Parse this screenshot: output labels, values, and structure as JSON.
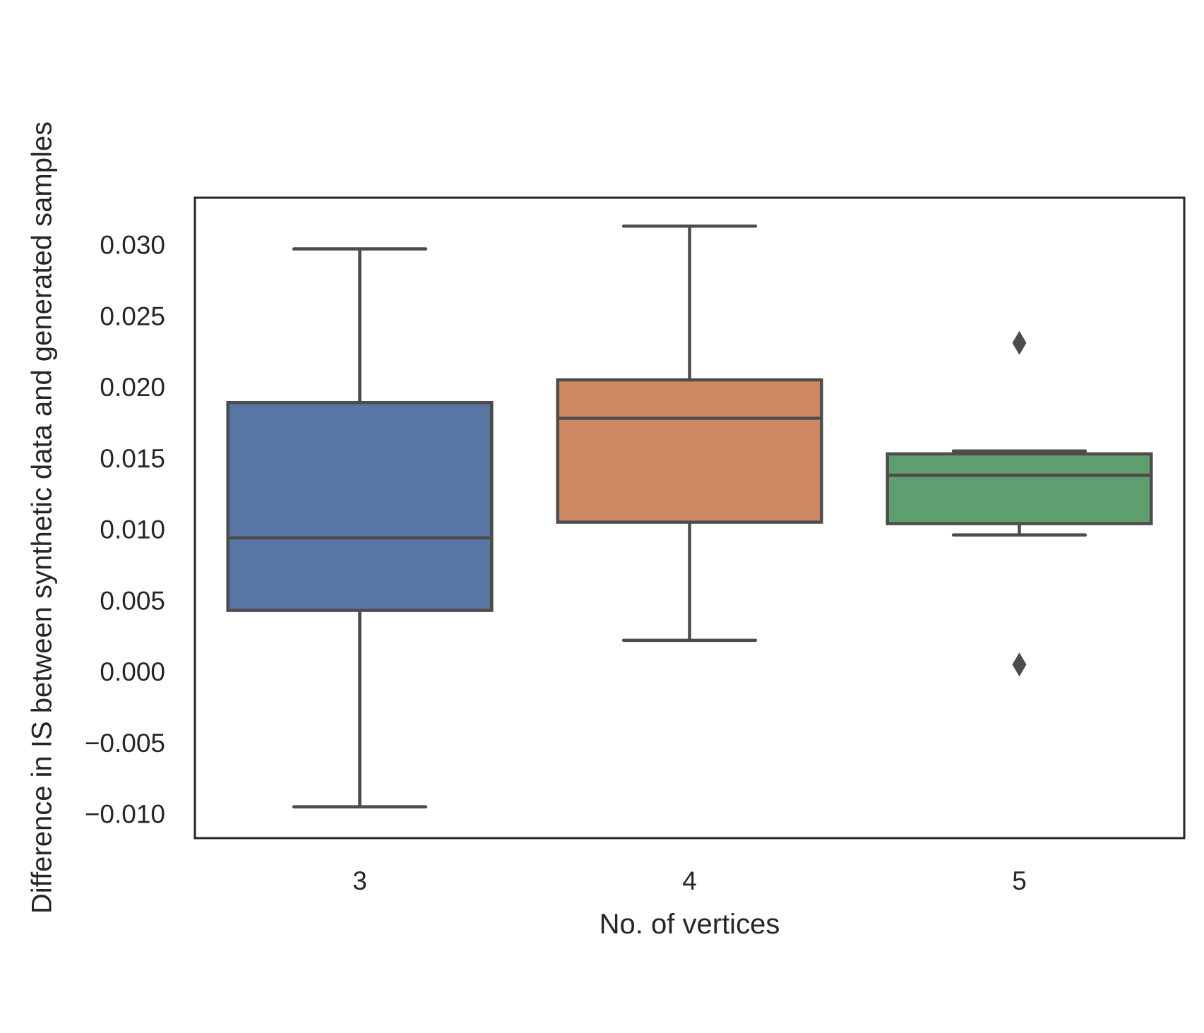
{
  "chart_data": {
    "type": "box",
    "title": "",
    "xlabel": "No. of vertices",
    "ylabel": "Difference in IS between synthetic data and generated samples",
    "categories": [
      "3",
      "4",
      "5"
    ],
    "ylim": [
      -0.0117,
      0.0333
    ],
    "yticks": [
      -0.01,
      -0.005,
      0.0,
      0.005,
      0.01,
      0.015,
      0.02,
      0.025,
      0.03
    ],
    "ytick_labels": [
      "−0.010",
      "−0.005",
      "0.000",
      "0.005",
      "0.010",
      "0.015",
      "0.020",
      "0.025",
      "0.030"
    ],
    "grid": false,
    "series": [
      {
        "category": "3",
        "color": "#5975a4",
        "whisker_low": -0.0095,
        "q1": 0.0043,
        "median": 0.0094,
        "q3": 0.0189,
        "whisker_high": 0.0297,
        "outliers": []
      },
      {
        "category": "4",
        "color": "#cc8963",
        "whisker_low": 0.0022,
        "q1": 0.0105,
        "median": 0.0178,
        "q3": 0.0205,
        "whisker_high": 0.0313,
        "outliers": []
      },
      {
        "category": "5",
        "color": "#5f9e6e",
        "whisker_low": 0.0096,
        "q1": 0.0104,
        "median": 0.0138,
        "q3": 0.0153,
        "whisker_high": 0.0155,
        "outliers": [
          0.0231,
          0.0005
        ]
      }
    ],
    "style": {
      "line_color": "#4c4c4c",
      "frame_color": "#262626",
      "text_color": "#262626"
    }
  }
}
